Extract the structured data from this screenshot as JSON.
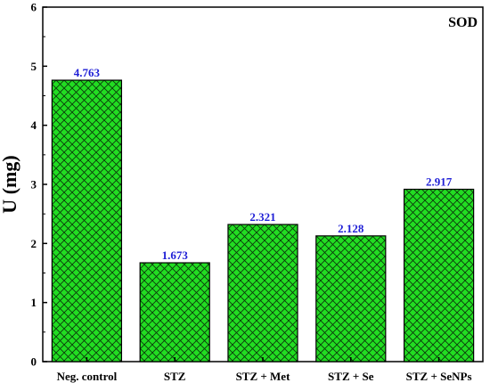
{
  "chart_data": {
    "type": "bar",
    "title": "SOD",
    "xlabel": "",
    "ylabel": "U (mg)",
    "categories": [
      "Neg. control",
      "STZ",
      "STZ + Met",
      "STZ + Se",
      "STZ + SeNPs"
    ],
    "values": [
      4.763,
      1.673,
      2.321,
      2.128,
      2.917
    ],
    "data_labels": [
      "4.763",
      "1.673",
      "2.321",
      "2.128",
      "2.917"
    ],
    "ylim": [
      0,
      6
    ],
    "yticks": [
      "0",
      "1",
      "2",
      "3",
      "4",
      "5",
      "6"
    ],
    "grid": false,
    "bar_color": "#22dd22",
    "bar_pattern": "cross-hatch",
    "label_color": "#1f1fd6"
  }
}
